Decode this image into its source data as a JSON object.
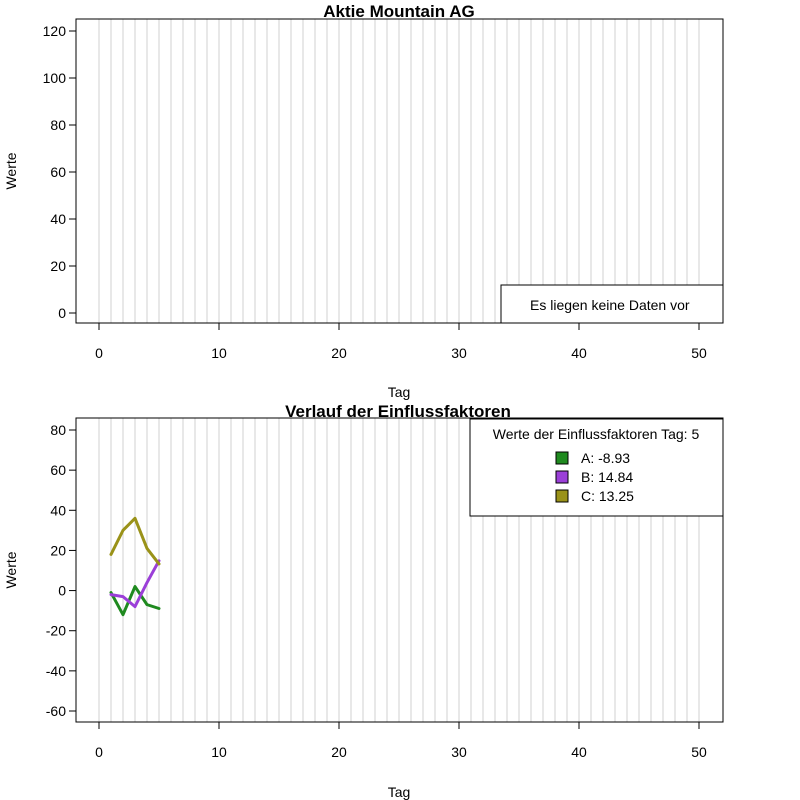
{
  "chart_data": [
    {
      "type": "line",
      "title": "Aktie  Mountain AG",
      "xlabel": "Tag",
      "ylabel": "Werte",
      "xlim": [
        0,
        50
      ],
      "ylim": [
        0,
        120
      ],
      "x_ticks": [
        0,
        10,
        20,
        30,
        40,
        50
      ],
      "y_ticks": [
        0,
        20,
        40,
        60,
        80,
        100,
        120
      ],
      "grid": "vertical",
      "series": [],
      "legend": {
        "position": "bottom-right",
        "entries": [
          "Es liegen keine Daten vor"
        ]
      }
    },
    {
      "type": "line",
      "title": "Verlauf der Einflussfaktoren",
      "xlabel": "Tag",
      "ylabel": "Werte",
      "xlim": [
        0,
        50
      ],
      "ylim": [
        -60,
        80
      ],
      "x_ticks": [
        0,
        10,
        20,
        30,
        40,
        50
      ],
      "y_ticks": [
        -60,
        -40,
        -20,
        0,
        20,
        40,
        60,
        80
      ],
      "grid": "vertical",
      "x": [
        1,
        2,
        3,
        4,
        5
      ],
      "series": [
        {
          "name": "A: -8.93",
          "color": "#1f8a1f",
          "values": [
            -1,
            -12,
            2,
            -7,
            -8.93
          ]
        },
        {
          "name": "B: 14.84",
          "color": "#9b3fd8",
          "values": [
            -2,
            -3,
            -8,
            4,
            14.84
          ]
        },
        {
          "name": "C: 13.25",
          "color": "#9a9219",
          "values": [
            18,
            30,
            36,
            21,
            13.25
          ]
        }
      ],
      "legend": {
        "position": "top-right",
        "title": "Werte der Einflussfaktoren Tag: 5"
      }
    }
  ]
}
